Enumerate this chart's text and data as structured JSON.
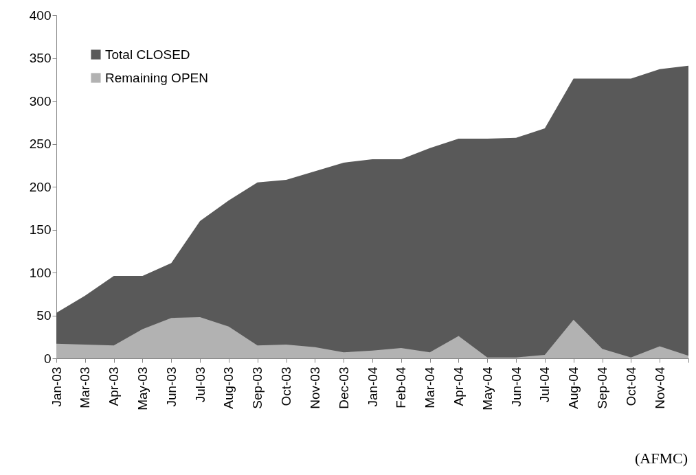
{
  "chart_data": {
    "type": "area",
    "categories": [
      "Jan-03",
      "Mar-03",
      "Apr-03",
      "May-03",
      "Jun-03",
      "Jul-03",
      "Aug-03",
      "Sep-03",
      "Oct-03",
      "Nov-03",
      "Dec-03",
      "Jan-04",
      "Feb-04",
      "Mar-04",
      "Apr-04",
      "May-04",
      "Jun-04",
      "Jul-04",
      "Aug-04",
      "Sep-04",
      "Oct-04",
      "Nov-04",
      null
    ],
    "series": [
      {
        "name": "Total CLOSED",
        "color": "#595959",
        "values": [
          53,
          73,
          96,
          96,
          111,
          160,
          184,
          205,
          208,
          218,
          228,
          232,
          232,
          245,
          256,
          256,
          257,
          268,
          326,
          326,
          326,
          337,
          341
        ]
      },
      {
        "name": "Remaining OPEN",
        "color": "#b2b2b2",
        "values": [
          17,
          16,
          15,
          34,
          47,
          48,
          37,
          15,
          16,
          13,
          7,
          9,
          12,
          7,
          26,
          1,
          1,
          4,
          45,
          11,
          1,
          14,
          3
        ]
      }
    ],
    "ylim": [
      0,
      400
    ],
    "yticks": [
      0,
      50,
      100,
      150,
      200,
      250,
      300,
      350,
      400
    ],
    "grid": false,
    "legend": "top left",
    "annotations": [
      "(AFMC)"
    ]
  }
}
